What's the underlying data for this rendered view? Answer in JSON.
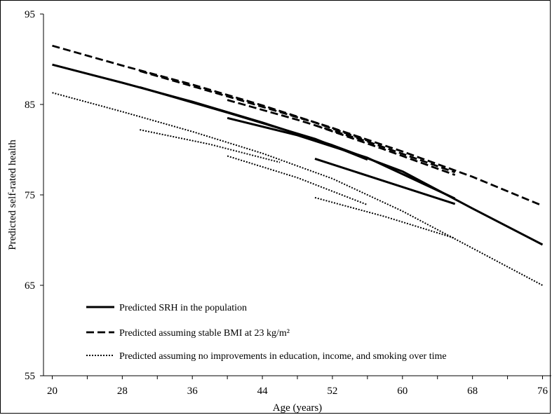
{
  "chart_data": {
    "type": "line",
    "title": "",
    "xlabel": "Age (years)",
    "ylabel": "Predicted self-rated health",
    "xlim": [
      19,
      77
    ],
    "ylim": [
      55,
      95
    ],
    "x_ticks": [
      "20",
      "28",
      "36",
      "44",
      "52",
      "60",
      "68",
      "76"
    ],
    "y_ticks": [
      "95",
      "85",
      "75",
      "65",
      "55"
    ],
    "grid": false,
    "legend_position": "bottom-left",
    "legend": [
      {
        "name": "Predicted SRH in the population",
        "style": "solid"
      },
      {
        "name": "Predicted assuming stable BMI at 23 kg/m²",
        "style": "dashed"
      },
      {
        "name": "Predicted assuming no improvements in education, income, and smoking over time",
        "style": "dotted"
      }
    ],
    "series": [
      {
        "group": "Predicted SRH in the population",
        "style": "solid",
        "x": [
          20,
          28,
          36,
          44,
          52,
          60,
          68,
          76
        ],
        "values": [
          89.4,
          87.4,
          85.3,
          83.0,
          80.5,
          77.6,
          73.5,
          69.5
        ]
      },
      {
        "group": "Predicted SRH in the population",
        "style": "solid",
        "x": [
          30,
          40,
          50,
          56
        ],
        "values": [
          86.9,
          84.1,
          81.2,
          78.9
        ]
      },
      {
        "group": "Predicted SRH in the population",
        "style": "solid",
        "x": [
          40,
          48,
          56,
          66
        ],
        "values": [
          83.5,
          81.6,
          79.1,
          74.6
        ]
      },
      {
        "group": "Predicted SRH in the population",
        "style": "solid",
        "x": [
          50,
          58,
          66
        ],
        "values": [
          79.0,
          76.5,
          74.0
        ]
      },
      {
        "group": "Predicted assuming stable BMI at 23 kg/m²",
        "style": "dashed",
        "x": [
          20,
          28,
          36,
          44,
          52,
          60,
          68,
          76
        ],
        "values": [
          91.5,
          89.3,
          87.2,
          84.9,
          82.4,
          79.8,
          77.0,
          73.8
        ]
      },
      {
        "group": "Predicted assuming stable BMI at 23 kg/m²",
        "style": "dashed",
        "x": [
          30,
          40,
          50,
          56
        ],
        "values": [
          88.7,
          85.9,
          83.0,
          81.0
        ]
      },
      {
        "group": "Predicted assuming stable BMI at 23 kg/m²",
        "style": "dashed",
        "x": [
          40,
          48,
          56,
          66
        ],
        "values": [
          85.5,
          83.3,
          80.9,
          77.5
        ]
      },
      {
        "group": "Predicted assuming stable BMI at 23 kg/m²",
        "style": "dashed",
        "x": [
          50,
          58,
          66
        ],
        "values": [
          82.7,
          80.0,
          77.2
        ]
      },
      {
        "group": "Predicted assuming no improvements in education, income, and smoking over time",
        "style": "dotted",
        "x": [
          20,
          28,
          36,
          44,
          52,
          60,
          68,
          76
        ],
        "values": [
          86.3,
          84.2,
          82.0,
          79.6,
          76.8,
          73.2,
          69.1,
          65.0
        ]
      },
      {
        "group": "Predicted assuming no improvements in education, income, and smoking over time",
        "style": "dotted",
        "x": [
          30,
          38,
          46
        ],
        "values": [
          82.2,
          80.6,
          78.6
        ]
      },
      {
        "group": "Predicted assuming no improvements in education, income, and smoking over time",
        "style": "dotted",
        "x": [
          40,
          48,
          56
        ],
        "values": [
          79.3,
          76.9,
          73.9
        ]
      },
      {
        "group": "Predicted assuming no improvements in education, income, and smoking over time",
        "style": "dotted",
        "x": [
          50,
          58,
          66
        ],
        "values": [
          74.7,
          72.6,
          70.2
        ]
      }
    ]
  }
}
